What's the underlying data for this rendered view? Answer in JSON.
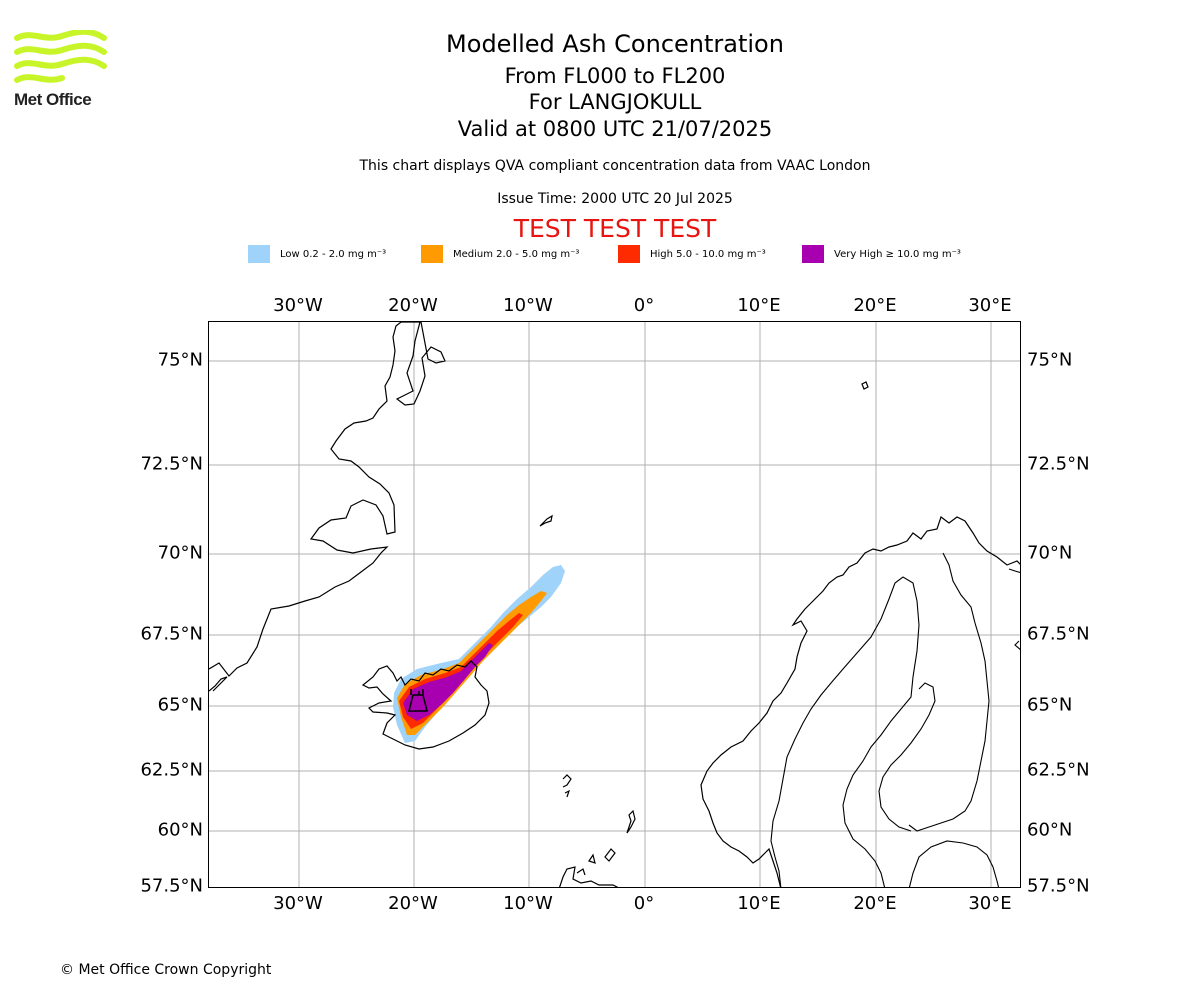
{
  "header": {
    "title": "Modelled Ash Concentration",
    "level_range": "From FL000 to FL200",
    "volcano": "For LANGJOKULL",
    "valid_time": "Valid at 0800 UTC 21/07/2025",
    "description": "This chart displays QVA compliant concentration data from VAAC London",
    "issue_time": "Issue Time: 2000 UTC 20 Jul 2025",
    "test_banner": "TEST TEST TEST"
  },
  "logo": {
    "text": "Met Office",
    "color": "#c8f52a"
  },
  "legend": [
    {
      "label": "Low 0.2 - 2.0 mg m⁻³",
      "color": "#9fd3fa"
    },
    {
      "label": "Medium 2.0 - 5.0 mg m⁻³",
      "color": "#ff9b00"
    },
    {
      "label": "High 5.0 - 10.0 mg m⁻³",
      "color": "#ff2b00"
    },
    {
      "label": "Very High  ≥  10.0 mg m⁻³",
      "color": "#a800b0"
    }
  ],
  "map": {
    "lon_ticks": [
      "30°W",
      "20°W",
      "10°W",
      "0°",
      "10°E",
      "20°E",
      "30°E"
    ],
    "lat_ticks": [
      "75°N",
      "72.5°N",
      "70°N",
      "67.5°N",
      "65°N",
      "62.5°N",
      "60°N",
      "57.5°N"
    ]
  },
  "footer": {
    "copyright": "© Met Office Crown Copyright"
  }
}
